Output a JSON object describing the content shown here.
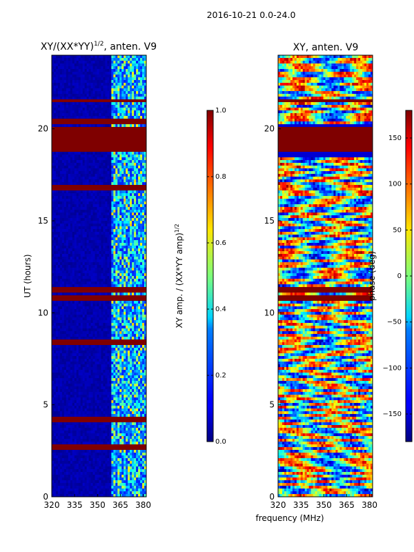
{
  "figure_title": "2016-10-21 0.0-24.0",
  "shared_xlabel": "frequency (MHz)",
  "chart_data": [
    {
      "type": "heatmap",
      "title": "XY/(XX*YY)",
      "title_exponent": "1/2",
      "title_suffix": ", anten. V9",
      "xlabel": "",
      "ylabel": "UT (hours)",
      "xlim": [
        320,
        382
      ],
      "ylim": [
        0,
        24
      ],
      "xticks": [
        320,
        335,
        350,
        365,
        380
      ],
      "yticks": [
        0,
        5,
        10,
        15,
        20
      ],
      "active_band_mhz": [
        359,
        382
      ],
      "flagged_bands_hours": [
        [
          18.8,
          20.1
        ],
        [
          21.4,
          21.6
        ],
        [
          20.3,
          20.5
        ],
        [
          16.7,
          16.9
        ],
        [
          11.1,
          11.4
        ],
        [
          10.7,
          10.9
        ],
        [
          8.3,
          8.5
        ],
        [
          4.1,
          4.3
        ],
        [
          2.6,
          2.8
        ]
      ],
      "colorbar": {
        "label": "XY amp. / (XX*YY amp)",
        "label_exponent": "1/2",
        "range": [
          0.0,
          1.0
        ],
        "ticks": [
          "0.0",
          "0.2",
          "0.4",
          "0.6",
          "0.8",
          "1.0"
        ],
        "colormap": "jet"
      }
    },
    {
      "type": "heatmap",
      "title": "XY, anten. V9",
      "xlabel": "",
      "ylabel": "",
      "xlim": [
        320,
        382
      ],
      "ylim": [
        0,
        24
      ],
      "xticks": [
        320,
        335,
        350,
        365,
        380
      ],
      "yticks": [
        0,
        5,
        10,
        15,
        20
      ],
      "flagged_bands_hours": [
        [
          18.8,
          20.1
        ],
        [
          21.4,
          21.6
        ],
        [
          11.1,
          11.4
        ],
        [
          10.7,
          10.9
        ]
      ],
      "colorbar": {
        "label": "phase (deg)",
        "range": [
          -180,
          180
        ],
        "ticks": [
          "−150",
          "−100",
          "−50",
          "0",
          "50",
          "100",
          "150"
        ],
        "colormap": "jet"
      }
    }
  ]
}
